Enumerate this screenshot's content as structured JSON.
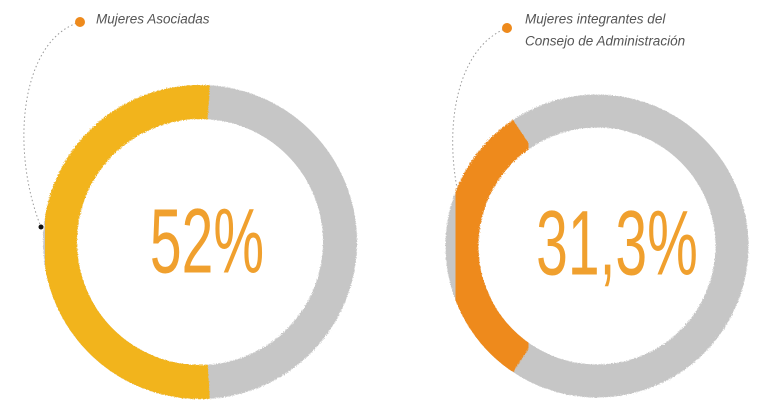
{
  "chart_data": [
    {
      "type": "donut",
      "title": [
        "Mujeres Asociadas"
      ],
      "values": [
        52
      ],
      "value_labels": [
        "52%"
      ],
      "color": "#f2b41c"
    },
    {
      "type": "donut",
      "title": [
        "Mujeres integrantes del",
        "Consejo de Administración"
      ],
      "values": [
        31.3
      ],
      "value_labels": [
        "31,3%"
      ],
      "color": "#ee8a1c"
    }
  ]
}
